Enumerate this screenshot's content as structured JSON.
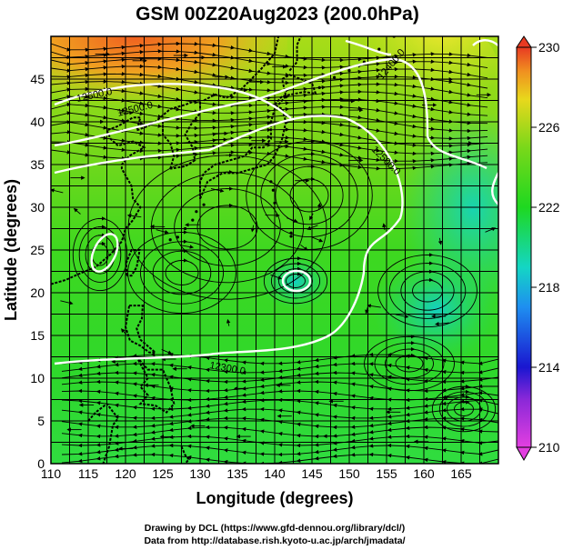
{
  "title": "GSM 00Z20Aug2023 (200.0hPa)",
  "xlabel": "Longitude (degrees)",
  "ylabel": "Latitude  (degrees)",
  "x_ticks": [
    "110",
    "115",
    "120",
    "125",
    "130",
    "135",
    "140",
    "145",
    "150",
    "155",
    "160",
    "165"
  ],
  "y_ticks": [
    "0",
    "5",
    "10",
    "15",
    "20",
    "25",
    "30",
    "35",
    "40",
    "45"
  ],
  "colorbar": {
    "ticks": [
      "210",
      "214",
      "218",
      "222",
      "226",
      "230"
    ],
    "colors": [
      "#e23fe0",
      "#1a16d0",
      "#1e8ef0",
      "#14d6c4",
      "#1ed820",
      "#7ad81a",
      "#e8d81c",
      "#f09020",
      "#e83a22"
    ]
  },
  "contour_labels": [
    "12600.0",
    "12500.0",
    "12400.0",
    "12300.0"
  ],
  "credits": {
    "line1": "Drawing by DCL (https://www.gfd-dennou.org/library/dcl/)",
    "line2": "Data from http://database.rish.kyoto-u.ac.jp/arch/jmadata/"
  },
  "chart_data": {
    "type": "heatmap",
    "title": "GSM 00Z20Aug2023 (200.0hPa)",
    "xlabel": "Longitude (degrees)",
    "ylabel": "Latitude  (degrees)",
    "xlim": [
      110,
      170
    ],
    "ylim": [
      0,
      50
    ],
    "colorbar_range": [
      210,
      230
    ],
    "grid": true,
    "overlays": [
      "streamlines",
      "geopotential height contours",
      "coastlines"
    ]
  }
}
